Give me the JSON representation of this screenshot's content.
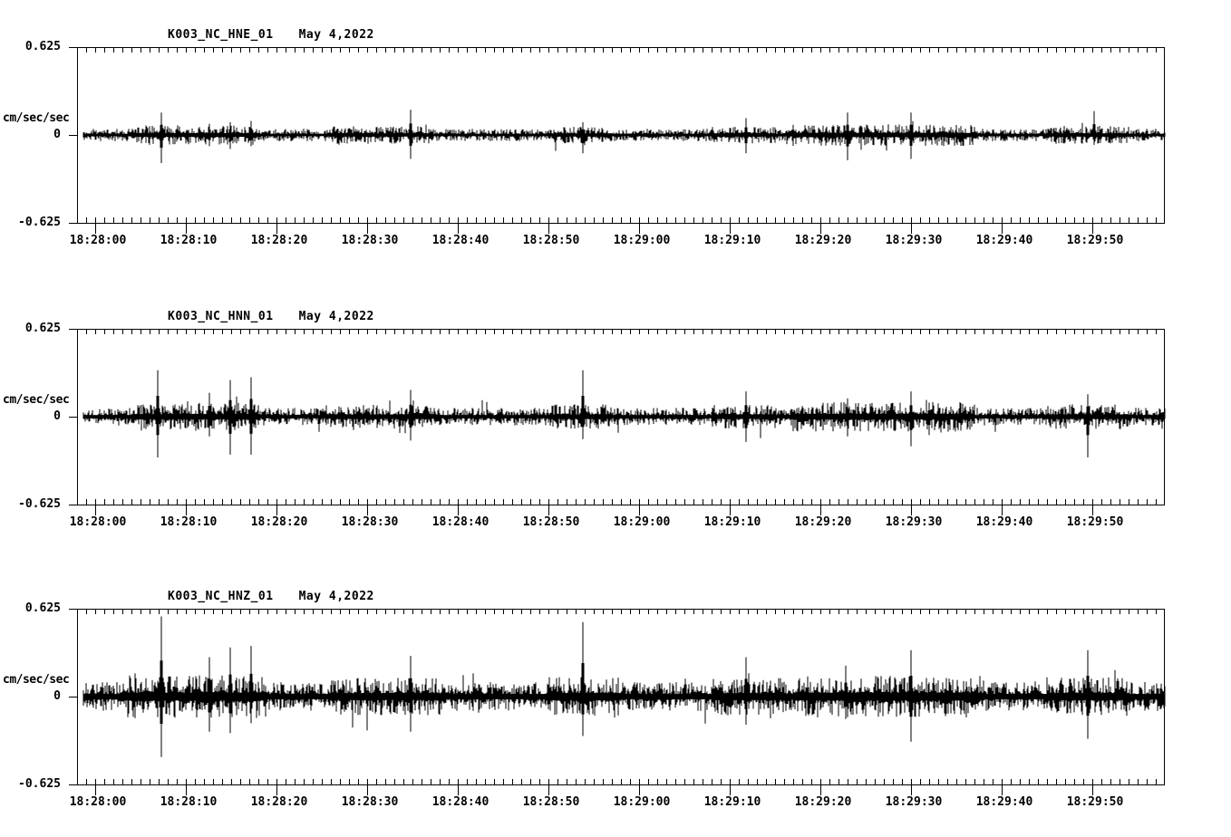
{
  "colors": {
    "background": "#ffffff",
    "trace": "#000000",
    "axis": "#000000"
  },
  "chart_data": [
    {
      "type": "line",
      "kind": "seismogram-trace",
      "station": "K003_NC_HNE_01",
      "date": "May 4,2022",
      "title": "K003_NC_HNE_01   May 4,2022",
      "ylabel": "cm/sec/sec",
      "ylim": [
        -0.625,
        0.625
      ],
      "ytick_labels": [
        "0.625",
        "0",
        "-0.625"
      ],
      "x_major_tick_labels": [
        "18:28:00",
        "18:28:10",
        "18:28:20",
        "18:28:30",
        "18:28:40",
        "18:28:50",
        "18:29:00",
        "18:29:10",
        "18:29:20",
        "18:29:30",
        "18:29:40",
        "18:29:50"
      ],
      "x_minor_tick_sec": 1,
      "x_major_tick_sec": 10,
      "time_start": "18:28:00",
      "time_end": "18:29:58",
      "grid": false,
      "legend": "none",
      "noise_amp": 0.027,
      "seed": 11,
      "bursts": [
        {
          "t0": 4,
          "t1": 18,
          "gain": 1.6
        },
        {
          "t0": 26,
          "t1": 37,
          "gain": 1.4
        },
        {
          "t0": 50,
          "t1": 57,
          "gain": 1.35
        },
        {
          "t0": 68,
          "t1": 75,
          "gain": 1.35
        },
        {
          "t0": 77,
          "t1": 97,
          "gain": 1.75
        },
        {
          "t0": 105,
          "t1": 114,
          "gain": 1.45
        }
      ],
      "spikes": [
        {
          "t": 7.3,
          "up": 0.16,
          "down": 0.2
        },
        {
          "t": 12.6,
          "up": 0.08,
          "down": 0.08
        },
        {
          "t": 14.9,
          "up": 0.09,
          "down": 0.1
        },
        {
          "t": 17.2,
          "up": 0.1,
          "down": 0.08
        },
        {
          "t": 34.8,
          "up": 0.18,
          "down": 0.17
        },
        {
          "t": 53.8,
          "up": 0.09,
          "down": 0.13
        },
        {
          "t": 71.8,
          "up": 0.12,
          "down": 0.13
        },
        {
          "t": 83.0,
          "up": 0.16,
          "down": 0.18
        },
        {
          "t": 90.0,
          "up": 0.16,
          "down": 0.17
        },
        {
          "t": 110.2,
          "up": 0.17,
          "down": 0.07
        }
      ]
    },
    {
      "type": "line",
      "kind": "seismogram-trace",
      "station": "K003_NC_HNN_01",
      "date": "May 4,2022",
      "title": "K003_NC_HNN_01   May 4,2022",
      "ylabel": "cm/sec/sec",
      "ylim": [
        -0.625,
        0.625
      ],
      "ytick_labels": [
        "0.625",
        "0",
        "-0.625"
      ],
      "x_major_tick_labels": [
        "18:28:00",
        "18:28:10",
        "18:28:20",
        "18:28:30",
        "18:28:40",
        "18:28:50",
        "18:29:00",
        "18:29:10",
        "18:29:20",
        "18:29:30",
        "18:29:40",
        "18:29:50"
      ],
      "x_minor_tick_sec": 1,
      "x_major_tick_sec": 10,
      "time_start": "18:28:00",
      "time_end": "18:29:58",
      "grid": false,
      "legend": "none",
      "noise_amp": 0.038,
      "seed": 22,
      "bursts": [
        {
          "t0": 4,
          "t1": 18,
          "gain": 1.6
        },
        {
          "t0": 26,
          "t1": 37,
          "gain": 1.35
        },
        {
          "t0": 50,
          "t1": 57,
          "gain": 1.4
        },
        {
          "t0": 68,
          "t1": 75,
          "gain": 1.35
        },
        {
          "t0": 77,
          "t1": 97,
          "gain": 1.7
        },
        {
          "t0": 105,
          "t1": 114,
          "gain": 1.4
        }
      ],
      "spikes": [
        {
          "t": 6.9,
          "up": 0.33,
          "down": 0.29
        },
        {
          "t": 12.6,
          "up": 0.17,
          "down": 0.14
        },
        {
          "t": 14.9,
          "up": 0.26,
          "down": 0.27
        },
        {
          "t": 17.2,
          "up": 0.28,
          "down": 0.27
        },
        {
          "t": 34.8,
          "up": 0.19,
          "down": 0.17
        },
        {
          "t": 53.8,
          "up": 0.33,
          "down": 0.16
        },
        {
          "t": 71.8,
          "up": 0.18,
          "down": 0.18
        },
        {
          "t": 83.0,
          "up": 0.13,
          "down": 0.14
        },
        {
          "t": 90.0,
          "up": 0.18,
          "down": 0.21
        },
        {
          "t": 92.0,
          "up": 0.1,
          "down": 0.13
        },
        {
          "t": 109.5,
          "up": 0.16,
          "down": 0.29
        }
      ]
    },
    {
      "type": "line",
      "kind": "seismogram-trace",
      "station": "K003_NC_HNZ_01",
      "date": "May 4,2022",
      "title": "K003_NC_HNZ_01   May 4,2022",
      "ylabel": "cm/sec/sec",
      "ylim": [
        -0.625,
        0.625
      ],
      "ytick_labels": [
        "0.625",
        "0",
        "-0.625"
      ],
      "x_major_tick_labels": [
        "18:28:00",
        "18:28:10",
        "18:28:20",
        "18:28:30",
        "18:28:40",
        "18:28:50",
        "18:29:00",
        "18:29:10",
        "18:29:20",
        "18:29:30",
        "18:29:40",
        "18:29:50"
      ],
      "x_minor_tick_sec": 1,
      "x_major_tick_sec": 10,
      "time_start": "18:28:00",
      "time_end": "18:29:58",
      "grid": false,
      "legend": "none",
      "noise_amp": 0.062,
      "seed": 33,
      "bursts": [
        {
          "t0": 3,
          "t1": 19,
          "gain": 1.5
        },
        {
          "t0": 26,
          "t1": 38,
          "gain": 1.3
        },
        {
          "t0": 50,
          "t1": 58,
          "gain": 1.35
        },
        {
          "t0": 68,
          "t1": 76,
          "gain": 1.3
        },
        {
          "t0": 77,
          "t1": 98,
          "gain": 1.45
        },
        {
          "t0": 105,
          "t1": 114,
          "gain": 1.35
        }
      ],
      "spikes": [
        {
          "t": 7.3,
          "up": 0.57,
          "down": 0.43
        },
        {
          "t": 12.6,
          "up": 0.28,
          "down": 0.25
        },
        {
          "t": 14.9,
          "up": 0.35,
          "down": 0.26
        },
        {
          "t": 17.2,
          "up": 0.36,
          "down": 0.19
        },
        {
          "t": 34.8,
          "up": 0.29,
          "down": 0.25
        },
        {
          "t": 53.8,
          "up": 0.53,
          "down": 0.28
        },
        {
          "t": 71.8,
          "up": 0.28,
          "down": 0.2
        },
        {
          "t": 82.8,
          "up": 0.22,
          "down": 0.16
        },
        {
          "t": 90.0,
          "up": 0.33,
          "down": 0.32
        },
        {
          "t": 109.5,
          "up": 0.33,
          "down": 0.3
        }
      ]
    }
  ]
}
